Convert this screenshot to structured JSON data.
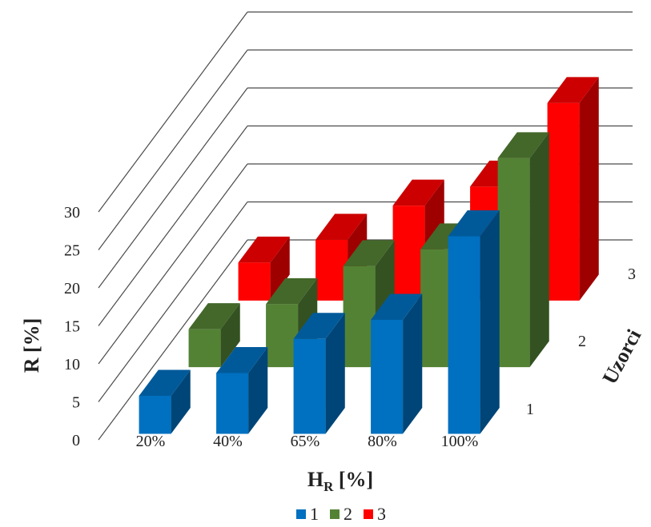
{
  "chart_data": {
    "type": "bar",
    "variant": "3d-clustered-depth",
    "categories": [
      "20%",
      "40%",
      "65%",
      "80%",
      "100%"
    ],
    "series": [
      {
        "name": "1",
        "values": [
          5,
          8,
          12.5,
          15,
          26
        ],
        "color": "#0070C0"
      },
      {
        "name": "2",
        "values": [
          5,
          8.3,
          13.3,
          15.5,
          27.5
        ],
        "color": "#548235"
      },
      {
        "name": "3",
        "values": [
          5,
          8,
          12.5,
          15,
          26
        ],
        "color": "#FF0000"
      }
    ],
    "xlabel": "H",
    "xlabel_sub": "R",
    "xlabel_unit": " [%]",
    "ylabel": "R [%]",
    "zlabel": "Uzorci",
    "depth_labels": [
      "1",
      "2",
      "3"
    ],
    "yticks": [
      "0",
      "5",
      "10",
      "15",
      "20",
      "25",
      "30"
    ],
    "ylim": [
      0,
      30
    ],
    "grid": true,
    "legend": "bottom"
  }
}
